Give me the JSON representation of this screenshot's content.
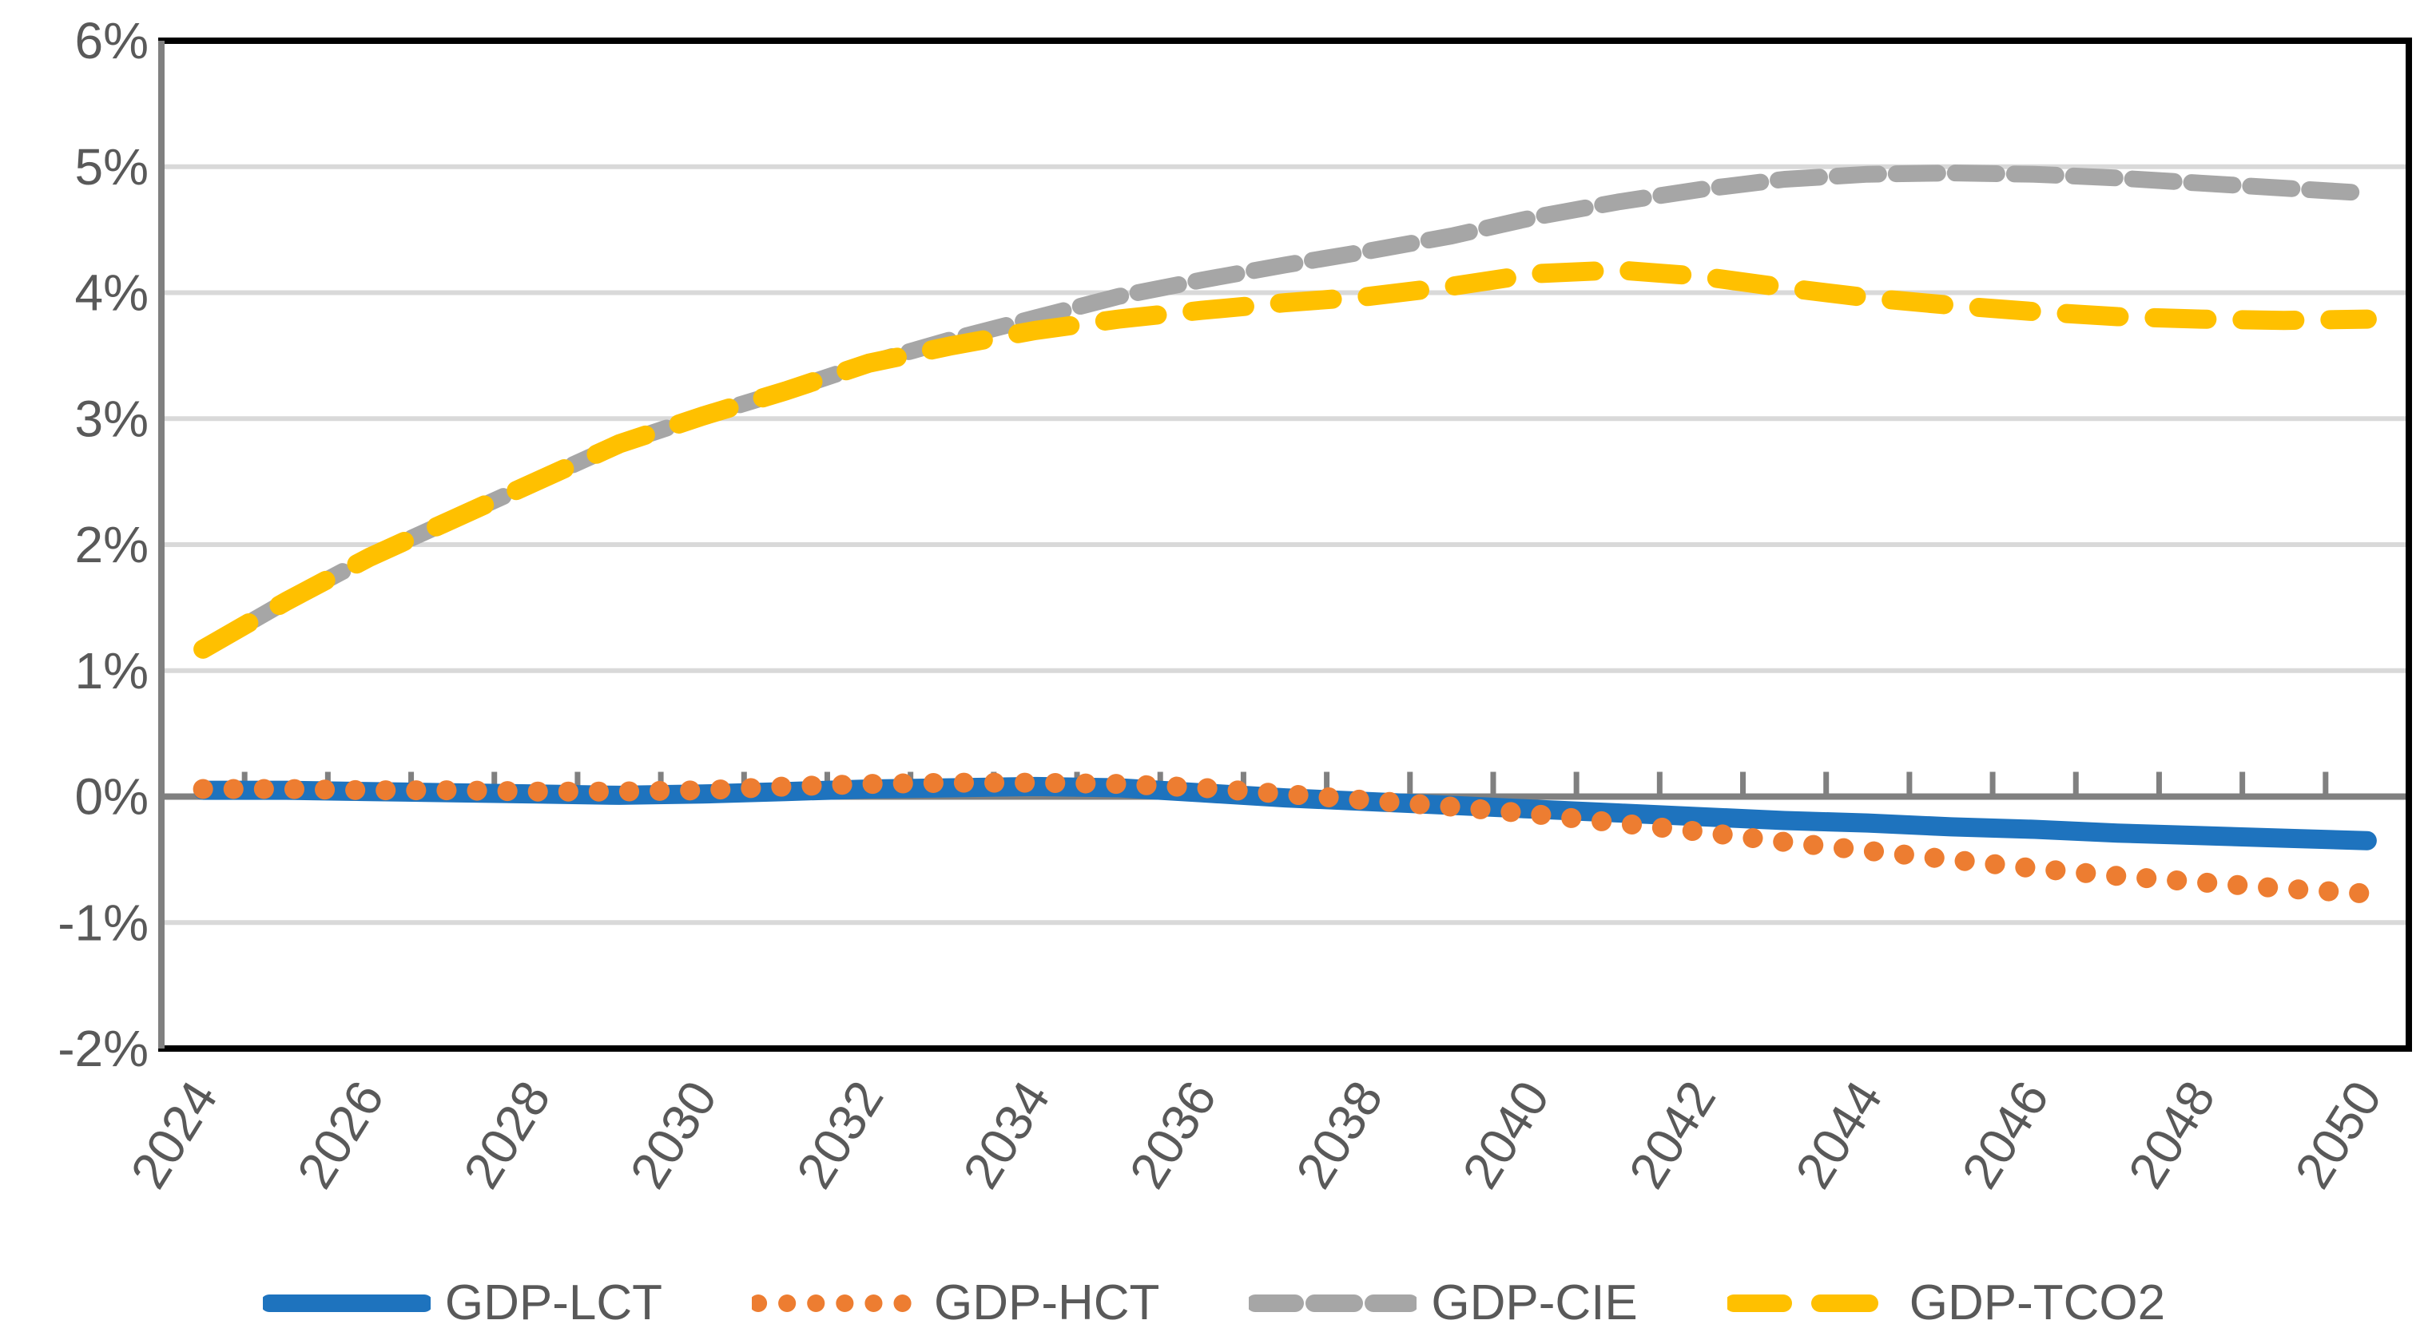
{
  "chart_data": {
    "type": "line",
    "title": "",
    "x": [
      2024,
      2025,
      2026,
      2027,
      2028,
      2029,
      2030,
      2031,
      2032,
      2033,
      2034,
      2035,
      2036,
      2037,
      2038,
      2039,
      2040,
      2041,
      2042,
      2043,
      2044,
      2045,
      2046,
      2047,
      2048,
      2049,
      2050
    ],
    "x_axis_tick_labels": [
      "2024",
      "2026",
      "2028",
      "2030",
      "2032",
      "2034",
      "2036",
      "2038",
      "2040",
      "2042",
      "2044",
      "2046",
      "2048",
      "2050"
    ],
    "y_axis_tick_labels": [
      "6%",
      "5%",
      "4%",
      "3%",
      "2%",
      "1%",
      "0%",
      "-1%",
      "-2%"
    ],
    "y_ticks": [
      6,
      5,
      4,
      3,
      2,
      1,
      0,
      -1,
      -2
    ],
    "ylim": [
      -2,
      6
    ],
    "y_unit": "percent",
    "grid": true,
    "legend_position": "bottom",
    "series": [
      {
        "name": "GDP-LCT",
        "color": "#1E73BE",
        "style": "solid",
        "values": [
          0.05,
          0.05,
          0.04,
          0.03,
          0.02,
          0.01,
          0.02,
          0.04,
          0.06,
          0.07,
          0.08,
          0.07,
          0.03,
          -0.01,
          -0.04,
          -0.07,
          -0.1,
          -0.13,
          -0.16,
          -0.19,
          -0.21,
          -0.24,
          -0.26,
          -0.29,
          -0.31,
          -0.33,
          -0.35
        ]
      },
      {
        "name": "GDP-HCT",
        "color": "#ED7D31",
        "style": "dotted",
        "values": [
          0.06,
          0.06,
          0.05,
          0.05,
          0.04,
          0.04,
          0.05,
          0.08,
          0.1,
          0.11,
          0.11,
          0.1,
          0.07,
          0.02,
          -0.03,
          -0.08,
          -0.14,
          -0.21,
          -0.28,
          -0.36,
          -0.43,
          -0.5,
          -0.57,
          -0.63,
          -0.68,
          -0.73,
          -0.77
        ]
      },
      {
        "name": "GDP-CIE",
        "color": "#A6A6A6",
        "style": "dashed",
        "values": [
          1.17,
          1.55,
          1.9,
          2.2,
          2.5,
          2.8,
          3.02,
          3.22,
          3.44,
          3.63,
          3.8,
          3.97,
          4.1,
          4.22,
          4.33,
          4.45,
          4.6,
          4.72,
          4.82,
          4.9,
          4.94,
          4.95,
          4.94,
          4.91,
          4.87,
          4.83,
          4.79
        ]
      },
      {
        "name": "GDP-TCO2",
        "color": "#FFC000",
        "style": "long-dash",
        "values": [
          1.17,
          1.55,
          1.9,
          2.2,
          2.5,
          2.8,
          3.02,
          3.22,
          3.44,
          3.58,
          3.7,
          3.79,
          3.86,
          3.92,
          3.97,
          4.05,
          4.15,
          4.18,
          4.13,
          4.04,
          3.96,
          3.9,
          3.85,
          3.81,
          3.79,
          3.78,
          3.79
        ]
      }
    ]
  },
  "styles": {
    "background_color": "#FFFFFF",
    "gridline_color": "#D9D9D9",
    "zero_axis_color": "#808080",
    "left_axis_color": "#808080",
    "tick_color": "#808080",
    "border_color": "#000000",
    "label_color": "#595959"
  }
}
